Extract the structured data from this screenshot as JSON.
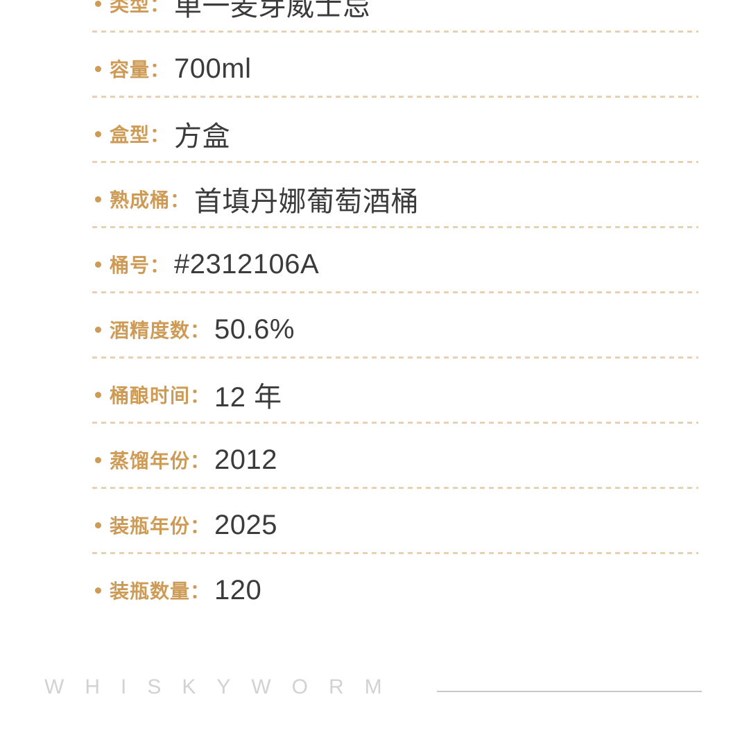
{
  "accent_color": "#CE9B56",
  "value_color": "#3B3B3B",
  "dash_color": "#E6D2B1",
  "label_separator": "：",
  "rows": [
    {
      "label": "类型",
      "value": "单一麦芽威士忌"
    },
    {
      "label": "容量",
      "value": "700ml"
    },
    {
      "label": "盒型",
      "value": "方盒"
    },
    {
      "label": "熟成桶",
      "value": "首填丹娜葡萄酒桶"
    },
    {
      "label": "桶号",
      "value": "#2312106A"
    },
    {
      "label": "酒精度数",
      "value": "50.6%"
    },
    {
      "label": "桶酿时间",
      "value": "12 年"
    },
    {
      "label": "蒸馏年份",
      "value": "2012"
    },
    {
      "label": "装瓶年份",
      "value": "2025"
    },
    {
      "label": "装瓶数量",
      "value": "120"
    }
  ],
  "footer": {
    "brand": "WHISKYWORM"
  }
}
